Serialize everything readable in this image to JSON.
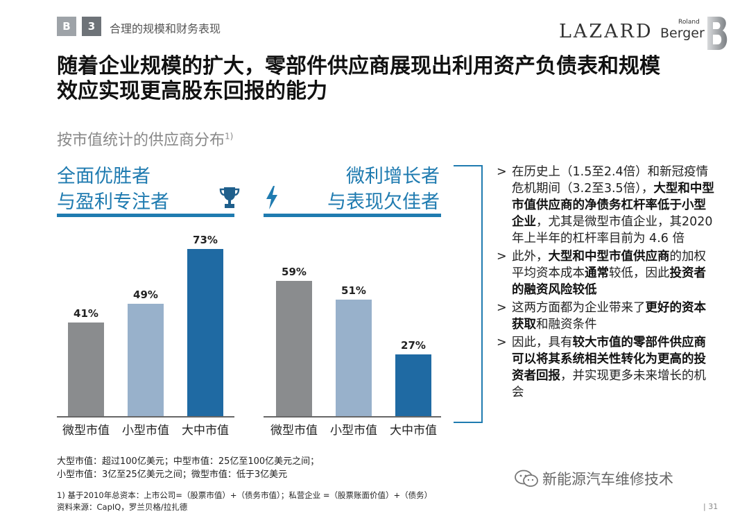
{
  "header": {
    "tag_b": "B",
    "tag_num": "3",
    "section": "合理的规模和财务表现",
    "logo_lazard": "LAZARD",
    "logo_rb_small": "Roland",
    "logo_rb_main": "Berger"
  },
  "title": {
    "line1": "随着企业规模的扩大，零部件供应商展现出利用资产负债表和规模",
    "line2": "效应实现更高股东回报的能力"
  },
  "subtitle": {
    "text": "按市值统计的供应商分布",
    "sup": "1)"
  },
  "groups": {
    "left": {
      "line1": "全面优胜者",
      "line2": "与盈利专注者",
      "icon": "trophy-icon"
    },
    "right": {
      "line1": "微利增长者",
      "line2": "与表现欠佳者",
      "icon": "lightning-icon"
    }
  },
  "colors": {
    "gray": "#8a8c8e",
    "light_blue": "#98b1cb",
    "dark_blue": "#1f6aa3",
    "accent": "#1f7bb0"
  },
  "chart_data": [
    {
      "type": "bar",
      "title": "全面优胜者与盈利专注者",
      "categories": [
        "微型市值",
        "小型市值",
        "大中市值"
      ],
      "values": [
        41,
        49,
        73
      ],
      "labels": [
        "41%",
        "49%",
        "73%"
      ],
      "unit": "%",
      "ylim": [
        0,
        100
      ]
    },
    {
      "type": "bar",
      "title": "微利增长者与表现欠佳者",
      "categories": [
        "微型市值",
        "小型市值",
        "大中市值"
      ],
      "values": [
        59,
        51,
        27
      ],
      "labels": [
        "59%",
        "51%",
        "27%"
      ],
      "unit": "%",
      "ylim": [
        0,
        100
      ]
    }
  ],
  "bullets": [
    {
      "arrow": ">",
      "parts": [
        {
          "t": "在历史上（1.5至2.4倍）和新冠疫情危机期间（3.2至3.5倍），",
          "b": false
        },
        {
          "t": "大型和中型市值供应商的净债务杠杆率低于小型企业",
          "b": true
        },
        {
          "t": "，尤其是微型市值企业，其2020年上半年的杠杆率目前为 4.6 倍",
          "b": false
        }
      ]
    },
    {
      "arrow": ">",
      "parts": [
        {
          "t": "此外，",
          "b": false
        },
        {
          "t": "大型和中型市值供应商",
          "b": true
        },
        {
          "t": "的加权平均资本成本",
          "b": false
        },
        {
          "t": "通常",
          "b": true
        },
        {
          "t": "较低，因此",
          "b": false
        },
        {
          "t": "投资者的融资风险较低",
          "b": true
        }
      ]
    },
    {
      "arrow": ">",
      "parts": [
        {
          "t": "这两方面都为企业带来了",
          "b": false
        },
        {
          "t": "更好的资本获取",
          "b": true
        },
        {
          "t": "和融资条件",
          "b": false
        }
      ]
    },
    {
      "arrow": ">",
      "parts": [
        {
          "t": "因此，具有",
          "b": false
        },
        {
          "t": "较大市值的零部件供应商可以将其系统相关性转化为更高的投资者回报",
          "b": true
        },
        {
          "t": "，并实现更多未来增长的机会",
          "b": false
        }
      ]
    }
  ],
  "definitions": {
    "line1": "大型市值：超过100亿美元；中型市值：25亿至100亿美元之间；",
    "line2": "小型市值：3亿至25亿美元之间；微型市值：低于3亿美元"
  },
  "footnote": {
    "line1": "1) 基于2010年总资本：上市公司=（股票市值）+（债务市值）；私营企业 =（股票账面价值）+（债务）",
    "line2": "资料来源：CapIQ，罗兰贝格/拉扎德"
  },
  "watermark": "新能源汽车维修技术",
  "page_number": "| 31"
}
